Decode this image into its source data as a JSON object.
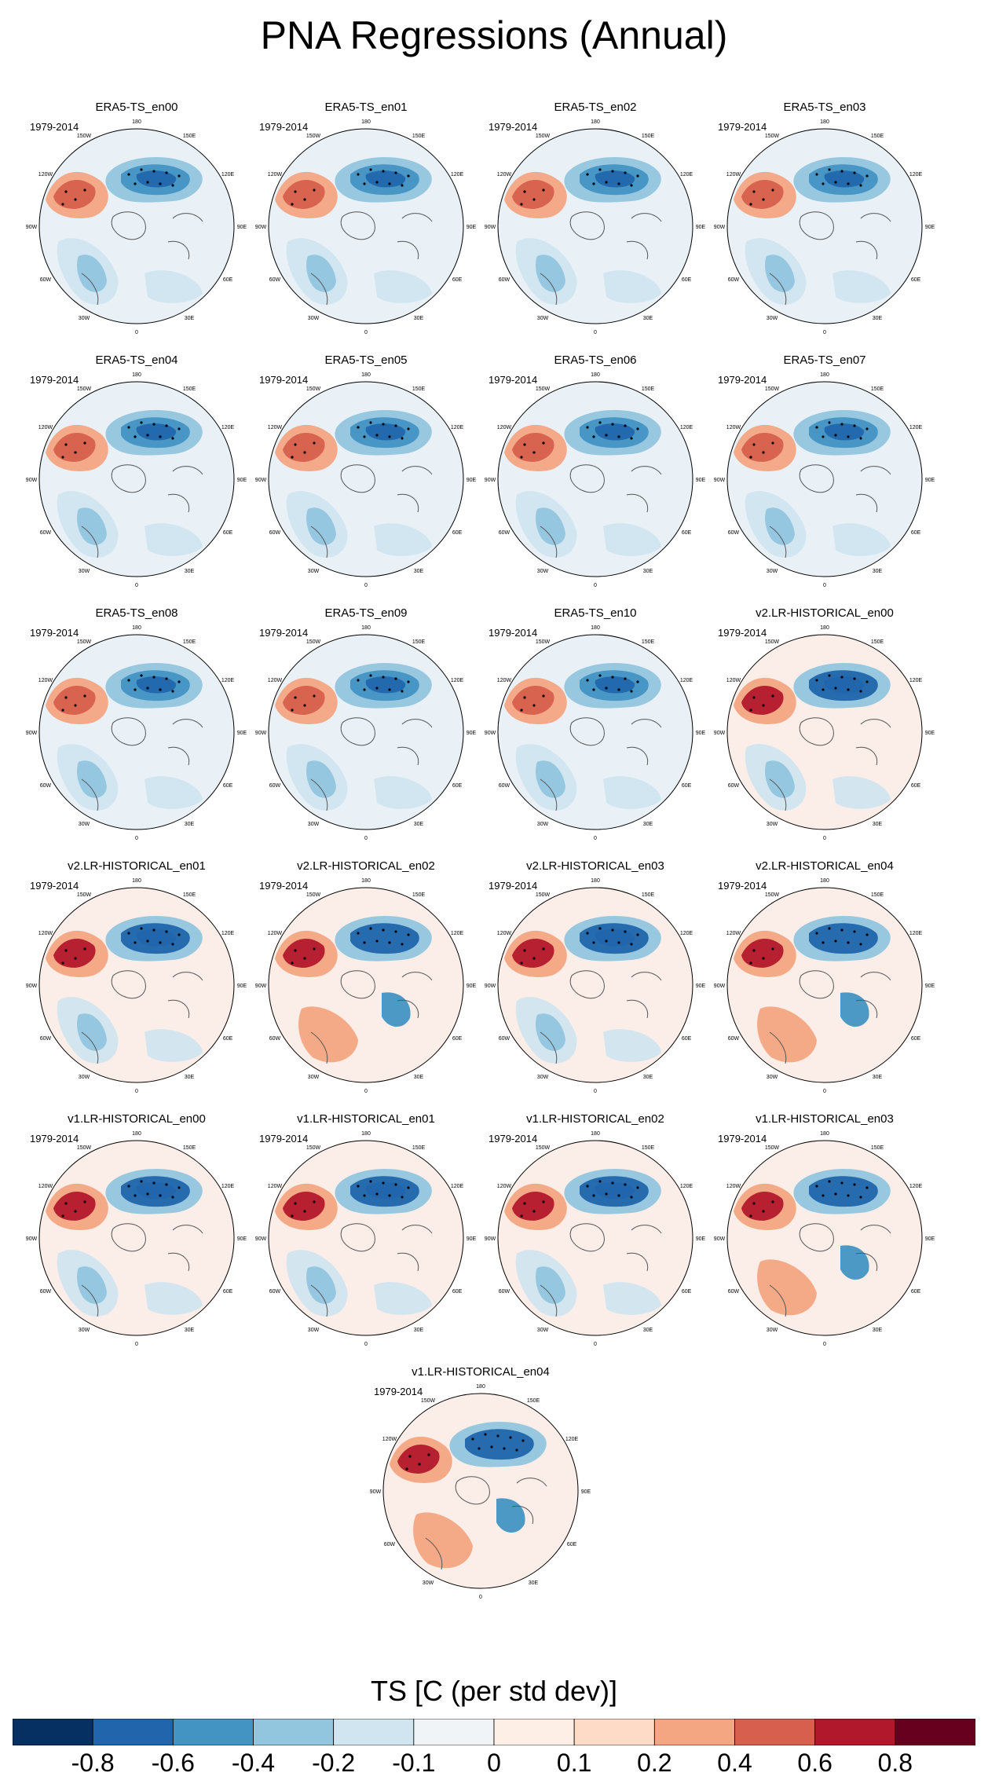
{
  "chart_data": {
    "type": "heatmap",
    "projection": "north-polar-stereographic",
    "title": "PNA Regressions (Annual)",
    "variable_label": "TS [C (per std dev)]",
    "period": "1979-2014",
    "lon_labels": [
      "180",
      "150E",
      "120E",
      "90E",
      "60E",
      "30E",
      "0",
      "30W",
      "60W",
      "90W",
      "120W",
      "150W"
    ],
    "panels": [
      {
        "name": "ERA5-TS_en00",
        "pattern": "era5"
      },
      {
        "name": "ERA5-TS_en01",
        "pattern": "era5"
      },
      {
        "name": "ERA5-TS_en02",
        "pattern": "era5"
      },
      {
        "name": "ERA5-TS_en03",
        "pattern": "era5"
      },
      {
        "name": "ERA5-TS_en04",
        "pattern": "era5"
      },
      {
        "name": "ERA5-TS_en05",
        "pattern": "era5"
      },
      {
        "name": "ERA5-TS_en06",
        "pattern": "era5"
      },
      {
        "name": "ERA5-TS_en07",
        "pattern": "era5"
      },
      {
        "name": "ERA5-TS_en08",
        "pattern": "era5"
      },
      {
        "name": "ERA5-TS_en09",
        "pattern": "era5"
      },
      {
        "name": "ERA5-TS_en10",
        "pattern": "era5"
      },
      {
        "name": "v2.LR-HISTORICAL_en00",
        "pattern": "model"
      },
      {
        "name": "v2.LR-HISTORICAL_en01",
        "pattern": "model"
      },
      {
        "name": "v2.LR-HISTORICAL_en02",
        "pattern": "model-weak"
      },
      {
        "name": "v2.LR-HISTORICAL_en03",
        "pattern": "model"
      },
      {
        "name": "v2.LR-HISTORICAL_en04",
        "pattern": "model-weak"
      },
      {
        "name": "v1.LR-HISTORICAL_en00",
        "pattern": "model"
      },
      {
        "name": "v1.LR-HISTORICAL_en01",
        "pattern": "model"
      },
      {
        "name": "v1.LR-HISTORICAL_en02",
        "pattern": "model"
      },
      {
        "name": "v1.LR-HISTORICAL_en03",
        "pattern": "model-weak"
      },
      {
        "name": "v1.LR-HISTORICAL_en04",
        "pattern": "model-weak"
      }
    ],
    "colorbar": {
      "colors": [
        "#053061",
        "#2166ac",
        "#4393c3",
        "#92c5de",
        "#d1e5f0",
        "#f0f4f7",
        "#fdeee6",
        "#fddbc7",
        "#f4a582",
        "#d6604d",
        "#b2182b",
        "#67001f"
      ],
      "tick_labels": [
        "-0.8",
        "-0.6",
        "-0.4",
        "-0.2",
        "-0.1",
        "0",
        "0.1",
        "0.2",
        "0.4",
        "0.6",
        "0.8"
      ]
    }
  }
}
